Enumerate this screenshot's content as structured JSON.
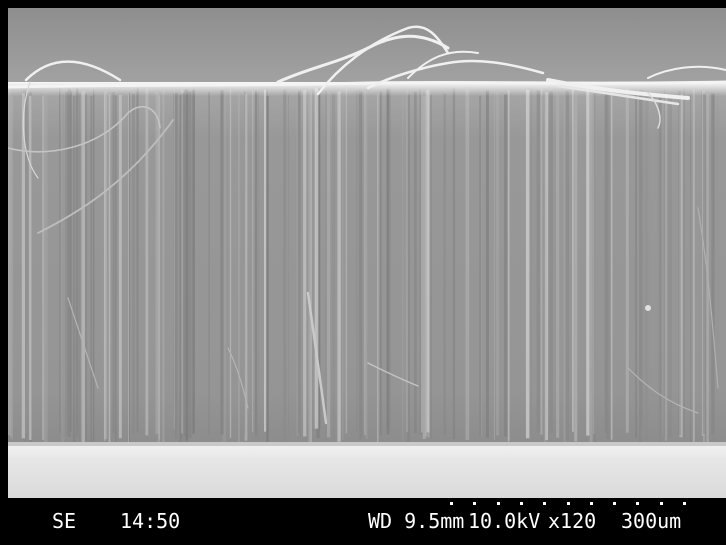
{
  "micrograph": {
    "image": "sem-micrograph-vertical-fiber-array",
    "colors": {
      "background_top": "#8a8a8a",
      "fiber_wall": "#9b9b9b",
      "substrate": "#e8e8e8",
      "info_bar": "#000000",
      "info_text": "#ffffff"
    }
  },
  "info_bar": {
    "detector": "SE",
    "time": "14:50",
    "working_distance": "WD 9.5mm",
    "voltage": "10.0kV",
    "magnification": "x120",
    "scale_label": "300um"
  }
}
